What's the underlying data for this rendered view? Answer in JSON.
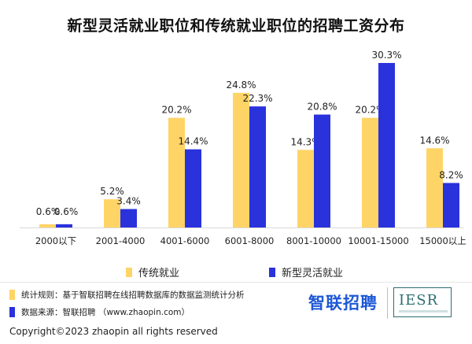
{
  "chart_data": {
    "type": "bar",
    "title": "新型灵活就业职位和传统就业职位的招聘工资分布",
    "categories": [
      "2000以下",
      "2001-4000",
      "4001-6000",
      "6001-8000",
      "8001-10000",
      "10001-15000",
      "15000以上"
    ],
    "series": [
      {
        "name": "传统就业",
        "values": [
          0.6,
          5.2,
          20.2,
          24.8,
          14.3,
          20.2,
          14.6
        ],
        "labels": [
          "0.6%",
          "5.2%",
          "20.2%",
          "24.8%",
          "14.3%",
          "20.2%",
          "14.6%"
        ],
        "color": "#FFD467"
      },
      {
        "name": "新型灵活就业",
        "values": [
          0.6,
          3.4,
          14.4,
          22.3,
          20.8,
          30.3,
          8.2
        ],
        "labels": [
          "0.6%",
          "3.4%",
          "14.4%",
          "22.3%",
          "20.8%",
          "30.3%",
          "8.2%"
        ],
        "color": "#2A32DC"
      }
    ],
    "ylim": [
      0,
      30.3
    ],
    "unit": "%",
    "grid": false,
    "legend_position": "bottom"
  },
  "notes": [
    {
      "text": "统计规则：基于智联招聘在线招聘数据库的数据监测统计分析",
      "color": "#FFD467"
    },
    {
      "text": "数据来源：智联招聘 （www.zhaopin.com）",
      "color": "#2A32DC"
    }
  ],
  "brands": {
    "zhaopin": "智联招聘",
    "iesr": "IESR"
  },
  "copyright": "Copyright©2023 zhaopin all rights reserved"
}
